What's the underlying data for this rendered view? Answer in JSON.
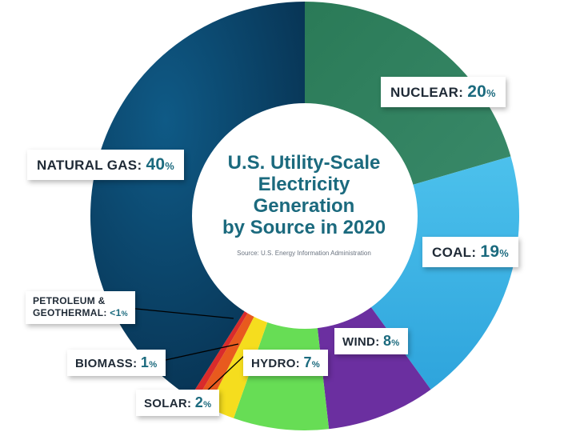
{
  "chart_data": {
    "type": "pie",
    "title_lines": [
      "U.S. Utility-Scale",
      "Electricity",
      "Generation",
      "by Source in 2020"
    ],
    "source": "Source: U.S. Energy Information Administration",
    "slices": [
      {
        "name": "NUCLEAR",
        "value": 20,
        "value_label": "20",
        "color": "#2e7d5e"
      },
      {
        "name": "COAL",
        "value": 19,
        "value_label": "19",
        "color": "#3fb6e6"
      },
      {
        "name": "WIND",
        "value": 8,
        "value_label": "8",
        "color": "#6b2fa0"
      },
      {
        "name": "HYDRO",
        "value": 7,
        "value_label": "7",
        "color": "#67dd55"
      },
      {
        "name": "SOLAR",
        "value": 2,
        "value_label": "2",
        "color": "#f5dd1e"
      },
      {
        "name": "BIOMASS",
        "value": 1,
        "value_label": "1",
        "color": "#e85a1e"
      },
      {
        "name": "PETROLEUM & GEOTHERMAL",
        "value": 0.5,
        "value_label": "<1",
        "color": "#d92b2b"
      },
      {
        "name": "NATURAL GAS",
        "value": 40,
        "value_label": "40",
        "color": "#0a3f6b"
      }
    ]
  },
  "labels": {
    "nuclear": {
      "name": "NUCLEAR:",
      "pct": "20"
    },
    "coal": {
      "name": "COAL:",
      "pct": "19"
    },
    "wind": {
      "name": "WIND:",
      "pct": "8"
    },
    "hydro": {
      "name": "HYDRO:",
      "pct": "7"
    },
    "solar": {
      "name": "SOLAR:",
      "pct": "2"
    },
    "biomass": {
      "name": "BIOMASS:",
      "pct": "1"
    },
    "petroleum": {
      "line1": "PETROLEUM &",
      "line2": "GEOTHERMAL:",
      "pct": "<1"
    },
    "natural_gas": {
      "name": "NATURAL GAS:",
      "pct": "40"
    },
    "percent_sign": "%"
  }
}
